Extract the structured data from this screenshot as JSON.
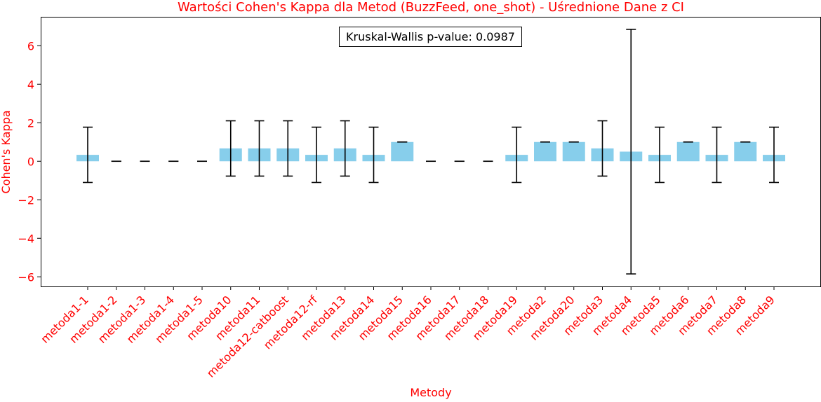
{
  "chart_data": {
    "type": "bar",
    "title": "Wartości Cohen's Kappa dla Metod (BuzzFeed, one_shot) - Uśrednione Dane z CI",
    "xlabel": "Metody",
    "ylabel": "Cohen's Kappa",
    "annotation": "Kruskal-Wallis p-value: 0.0987",
    "ylim": [
      -6.5,
      7.5
    ],
    "yticks": [
      -6,
      -4,
      -2,
      0,
      2,
      4,
      6
    ],
    "ytick_labels": [
      "−6",
      "−4",
      "−2",
      "0",
      "2",
      "4",
      "6"
    ],
    "categories": [
      "metoda1-1",
      "metoda1-2",
      "metoda1-3",
      "metoda1-4",
      "metoda1-5",
      "metoda10",
      "metoda11",
      "metoda12-catboost",
      "metoda12-rf",
      "metoda13",
      "metoda14",
      "metoda15",
      "metoda16",
      "metoda17",
      "metoda18",
      "metoda19",
      "metoda2",
      "metoda20",
      "metoda3",
      "metoda4",
      "metoda5",
      "metoda6",
      "metoda7",
      "metoda8",
      "metoda9"
    ],
    "values": [
      0.333,
      0.0,
      0.0,
      0.0,
      0.0,
      0.667,
      0.667,
      0.667,
      0.333,
      0.667,
      0.333,
      1.0,
      0.0,
      0.0,
      0.0,
      0.333,
      1.0,
      1.0,
      0.667,
      0.5,
      0.333,
      1.0,
      0.333,
      1.0,
      0.333
    ],
    "ci_lower": [
      -1.1,
      0.0,
      0.0,
      0.0,
      0.0,
      -0.77,
      -0.77,
      -0.77,
      -1.1,
      -0.77,
      -1.1,
      1.0,
      0.0,
      0.0,
      0.0,
      -1.1,
      1.0,
      1.0,
      -0.77,
      -5.85,
      -1.1,
      1.0,
      -1.1,
      1.0,
      -1.1
    ],
    "ci_upper": [
      1.77,
      0.0,
      0.0,
      0.0,
      0.0,
      2.1,
      2.1,
      2.1,
      1.77,
      2.1,
      1.77,
      1.0,
      0.0,
      0.0,
      0.0,
      1.77,
      1.0,
      1.0,
      2.1,
      6.85,
      1.77,
      1.0,
      1.77,
      1.0,
      1.77
    ],
    "bar_color": "#87ceeb",
    "error_color": "#000000",
    "label_color": "#ff0000",
    "grid": false,
    "legend": null
  }
}
